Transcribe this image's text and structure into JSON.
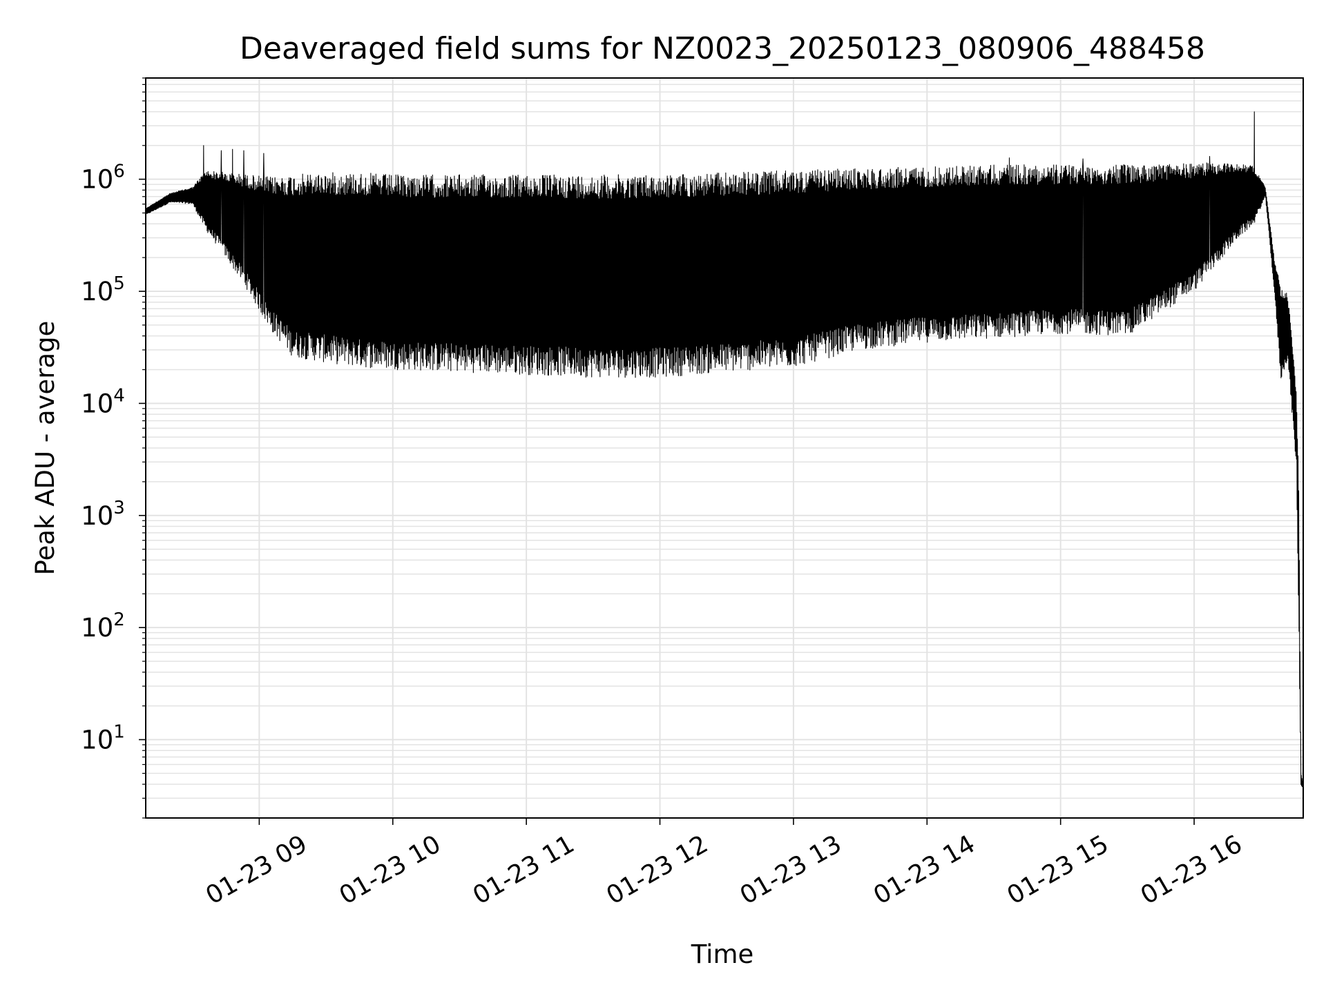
{
  "chart_data": {
    "type": "line",
    "title": "Deaveraged field sums for NZ0023_20250123_080906_488458",
    "xlabel": "Time",
    "ylabel": "Peak ADU - average",
    "x_range": [
      "01-23 08:09",
      "01-23 16:49"
    ],
    "y_scale": "log",
    "y_range": [
      2,
      8000000
    ],
    "grid": true,
    "legend": "none",
    "line_color": "#000000",
    "grid_color": "#e3e3e3",
    "x_ticks": [
      {
        "t": "01-23 09:00",
        "label": "01-23 09"
      },
      {
        "t": "01-23 10:00",
        "label": "01-23 10"
      },
      {
        "t": "01-23 11:00",
        "label": "01-23 11"
      },
      {
        "t": "01-23 12:00",
        "label": "01-23 12"
      },
      {
        "t": "01-23 13:00",
        "label": "01-23 13"
      },
      {
        "t": "01-23 14:00",
        "label": "01-23 14"
      },
      {
        "t": "01-23 15:00",
        "label": "01-23 15"
      },
      {
        "t": "01-23 16:00",
        "label": "01-23 16"
      }
    ],
    "y_ticks": [
      {
        "value": 10,
        "base": "10",
        "exp": "1"
      },
      {
        "value": 100,
        "base": "10",
        "exp": "2"
      },
      {
        "value": 1000,
        "base": "10",
        "exp": "3"
      },
      {
        "value": 10000,
        "base": "10",
        "exp": "4"
      },
      {
        "value": 100000,
        "base": "10",
        "exp": "5"
      },
      {
        "value": 1000000,
        "base": "10",
        "exp": "6"
      }
    ],
    "series": [
      {
        "envelope": {
          "x": [
            "01-23 08:09",
            "01-23 08:20",
            "01-23 08:30",
            "01-23 08:36",
            "01-23 08:45",
            "01-23 08:55",
            "01-23 09:05",
            "01-23 09:15",
            "01-23 09:30",
            "01-23 09:45",
            "01-23 10:00",
            "01-23 10:30",
            "01-23 11:00",
            "01-23 11:30",
            "01-23 12:00",
            "01-23 12:30",
            "01-23 13:00",
            "01-23 13:30",
            "01-23 14:00",
            "01-23 14:30",
            "01-23 15:00",
            "01-23 15:30",
            "01-23 16:00",
            "01-23 16:20",
            "01-23 16:27",
            "01-23 16:32",
            "01-23 16:36",
            "01-23 16:39",
            "01-23 16:42",
            "01-23 16:44",
            "01-23 16:46",
            "01-23 16:47",
            "01-23 16:48",
            "01-23 16:49"
          ],
          "high": [
            550000,
            750000,
            850000,
            1200000,
            1150000,
            1100000,
            1050000,
            1100000,
            1150000,
            1150000,
            1100000,
            1100000,
            1100000,
            1100000,
            1100000,
            1150000,
            1200000,
            1250000,
            1300000,
            1350000,
            1350000,
            1350000,
            1400000,
            1400000,
            1300000,
            850000,
            200000,
            110000,
            95000,
            40000,
            12000,
            2000,
            5,
            4
          ],
          "low": [
            480000,
            620000,
            600000,
            350000,
            200000,
            100000,
            45000,
            26000,
            23000,
            21000,
            20000,
            19000,
            18000,
            17000,
            17000,
            19000,
            21000,
            30000,
            35000,
            38000,
            42000,
            40000,
            100000,
            300000,
            400000,
            700000,
            100000,
            16000,
            25000,
            8000,
            2500,
            100,
            3.8,
            3.8
          ]
        },
        "spikes": [
          {
            "t": "01-23 08:35",
            "value": 2000000
          },
          {
            "t": "01-23 08:43",
            "value": 1800000
          },
          {
            "t": "01-23 08:48",
            "value": 1850000
          },
          {
            "t": "01-23 08:53",
            "value": 1800000
          },
          {
            "t": "01-23 09:02",
            "value": 1700000
          },
          {
            "t": "01-23 14:37",
            "value": 1550000
          },
          {
            "t": "01-23 15:10",
            "value": 1520000
          },
          {
            "t": "01-23 16:07",
            "value": 1600000
          },
          {
            "t": "01-23 16:27",
            "value": 4000000
          }
        ]
      }
    ]
  }
}
